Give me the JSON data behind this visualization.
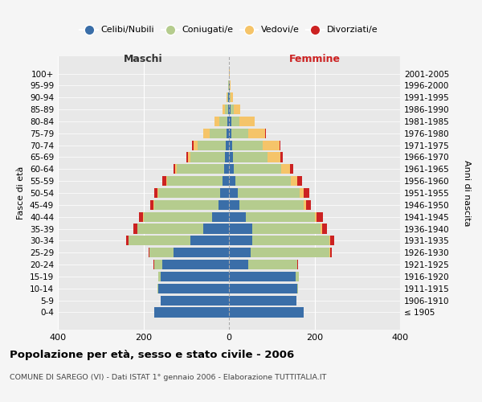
{
  "age_groups": [
    "100+",
    "95-99",
    "90-94",
    "85-89",
    "80-84",
    "75-79",
    "70-74",
    "65-69",
    "60-64",
    "55-59",
    "50-54",
    "45-49",
    "40-44",
    "35-39",
    "30-34",
    "25-29",
    "20-24",
    "15-19",
    "10-14",
    "5-9",
    "0-4"
  ],
  "birth_years": [
    "≤ 1905",
    "1906-1910",
    "1911-1915",
    "1916-1920",
    "1921-1925",
    "1926-1930",
    "1931-1935",
    "1936-1940",
    "1941-1945",
    "1946-1950",
    "1951-1955",
    "1956-1960",
    "1961-1965",
    "1966-1970",
    "1971-1975",
    "1976-1980",
    "1981-1985",
    "1986-1990",
    "1991-1995",
    "1996-2000",
    "2001-2005"
  ],
  "male": {
    "celibe": [
      0,
      0,
      1,
      2,
      3,
      5,
      8,
      10,
      12,
      15,
      20,
      25,
      40,
      60,
      90,
      130,
      155,
      160,
      165,
      160,
      175
    ],
    "coniugato": [
      0,
      1,
      3,
      8,
      20,
      40,
      65,
      80,
      110,
      130,
      145,
      150,
      160,
      155,
      145,
      55,
      20,
      5,
      2,
      0,
      0
    ],
    "vedovo": [
      0,
      0,
      1,
      5,
      10,
      15,
      10,
      5,
      3,
      2,
      2,
      1,
      1,
      0,
      0,
      0,
      0,
      0,
      0,
      0,
      0
    ],
    "divorziato": [
      0,
      0,
      0,
      0,
      0,
      1,
      3,
      4,
      5,
      8,
      8,
      8,
      10,
      8,
      5,
      3,
      1,
      0,
      0,
      0,
      0
    ]
  },
  "female": {
    "nubile": [
      0,
      1,
      2,
      3,
      5,
      5,
      8,
      10,
      12,
      15,
      20,
      25,
      40,
      55,
      55,
      50,
      45,
      155,
      160,
      158,
      175
    ],
    "coniugata": [
      0,
      0,
      2,
      8,
      20,
      40,
      70,
      80,
      110,
      130,
      145,
      150,
      160,
      160,
      180,
      185,
      115,
      8,
      2,
      0,
      0
    ],
    "vedova": [
      1,
      2,
      5,
      15,
      35,
      40,
      40,
      30,
      20,
      15,
      10,
      5,
      5,
      2,
      1,
      1,
      0,
      0,
      0,
      0,
      0
    ],
    "divorziata": [
      0,
      0,
      0,
      0,
      0,
      1,
      3,
      5,
      8,
      10,
      12,
      12,
      15,
      12,
      10,
      5,
      2,
      0,
      0,
      0,
      0
    ]
  },
  "colors": {
    "celibe": "#3A6EA8",
    "coniugato": "#B5CC8E",
    "vedovo": "#F5C469",
    "divorziato": "#CC2222"
  },
  "xlim": 400,
  "title": "Popolazione per età, sesso e stato civile - 2006",
  "subtitle": "COMUNE DI SAREGO (VI) - Dati ISTAT 1° gennaio 2006 - Elaborazione TUTTITALIA.IT",
  "xlabel_left": "Maschi",
  "xlabel_right": "Femmine",
  "ylabel_left": "Fasce di età",
  "ylabel_right": "Anni di nascita",
  "bg_color": "#f5f5f5",
  "plot_bg": "#e8e8e8"
}
